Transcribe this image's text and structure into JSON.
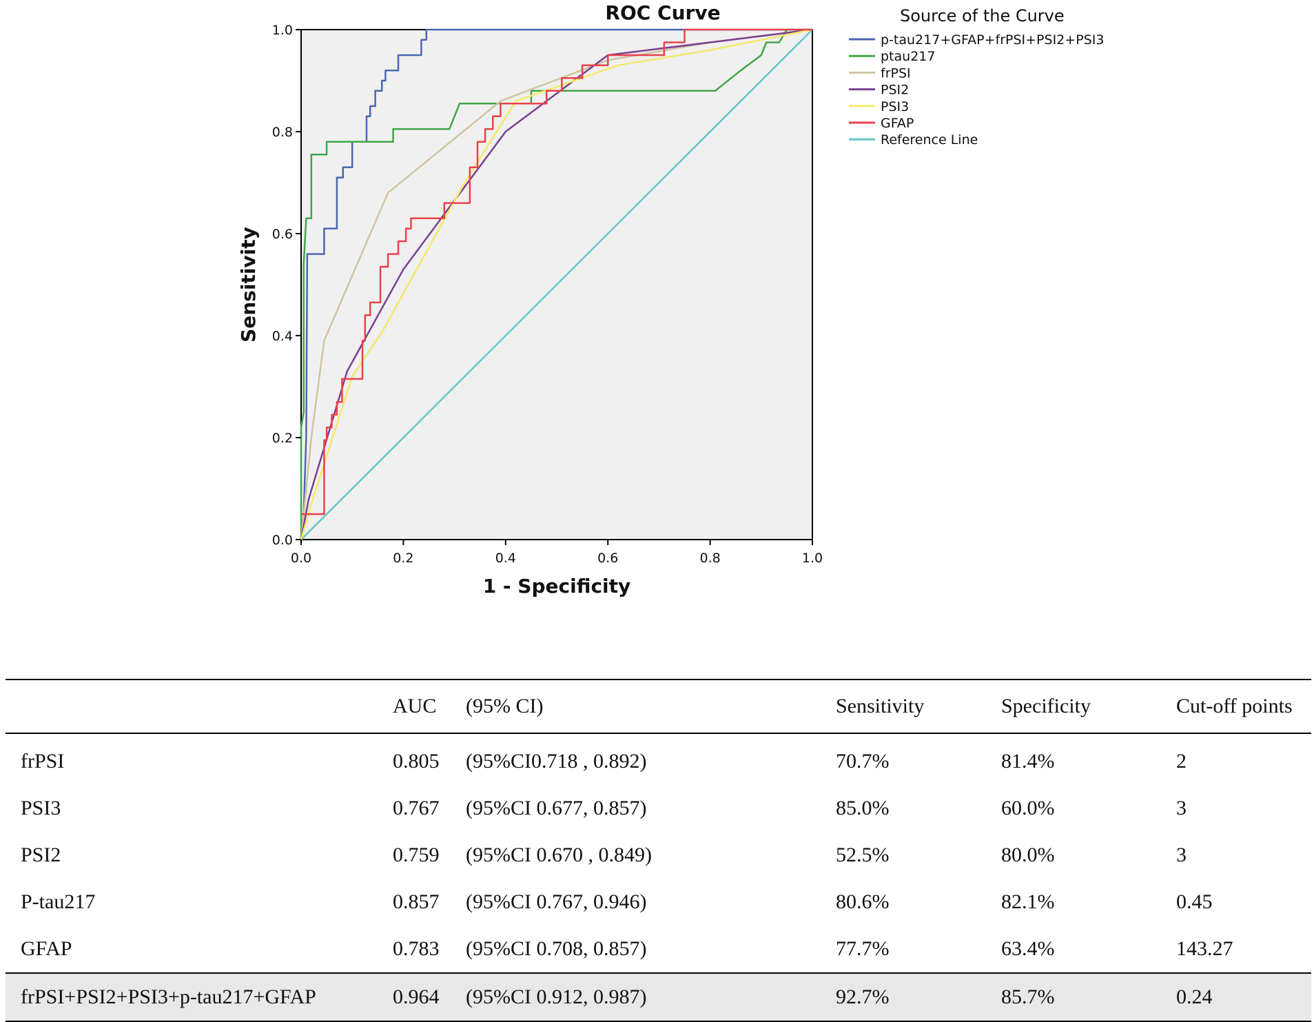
{
  "chart_data": {
    "type": "line",
    "title": "ROC Curve",
    "xlabel": "1 - Specificity",
    "ylabel": "Sensitivity",
    "xlim": [
      0,
      1
    ],
    "ylim": [
      0,
      1
    ],
    "xticks": [
      "0.0",
      "0.2",
      "0.4",
      "0.6",
      "0.8",
      "1.0"
    ],
    "yticks": [
      "0.0",
      "0.2",
      "0.4",
      "0.6",
      "0.8",
      "1.0"
    ],
    "legend_title": "Source of the Curve",
    "legend_position": "right",
    "series": [
      {
        "name": "p-tau217+GFAP+frPSI+PSI2+PSI3",
        "color": "#4a66b0",
        "points": [
          [
            0,
            0
          ],
          [
            0.005,
            0.05
          ],
          [
            0.01,
            0.2
          ],
          [
            0.012,
            0.56
          ],
          [
            0.045,
            0.56
          ],
          [
            0.045,
            0.61
          ],
          [
            0.07,
            0.61
          ],
          [
            0.07,
            0.71
          ],
          [
            0.082,
            0.71
          ],
          [
            0.082,
            0.73
          ],
          [
            0.1,
            0.73
          ],
          [
            0.1,
            0.78
          ],
          [
            0.128,
            0.78
          ],
          [
            0.128,
            0.83
          ],
          [
            0.135,
            0.83
          ],
          [
            0.135,
            0.85
          ],
          [
            0.145,
            0.85
          ],
          [
            0.145,
            0.88
          ],
          [
            0.158,
            0.88
          ],
          [
            0.158,
            0.9
          ],
          [
            0.165,
            0.9
          ],
          [
            0.165,
            0.92
          ],
          [
            0.19,
            0.92
          ],
          [
            0.19,
            0.95
          ],
          [
            0.235,
            0.95
          ],
          [
            0.235,
            0.98
          ],
          [
            0.245,
            0.98
          ],
          [
            0.245,
            1.0
          ],
          [
            1,
            1.0
          ]
        ]
      },
      {
        "name": "ptau217",
        "color": "#3fa648",
        "points": [
          [
            0,
            0
          ],
          [
            0,
            0.22
          ],
          [
            0.005,
            0.25
          ],
          [
            0.005,
            0.54
          ],
          [
            0.01,
            0.63
          ],
          [
            0.02,
            0.63
          ],
          [
            0.02,
            0.755
          ],
          [
            0.05,
            0.755
          ],
          [
            0.05,
            0.78
          ],
          [
            0.18,
            0.78
          ],
          [
            0.18,
            0.805
          ],
          [
            0.29,
            0.805
          ],
          [
            0.31,
            0.855
          ],
          [
            0.45,
            0.855
          ],
          [
            0.45,
            0.88
          ],
          [
            0.81,
            0.88
          ],
          [
            0.86,
            0.92
          ],
          [
            0.9,
            0.95
          ],
          [
            0.91,
            0.975
          ],
          [
            0.935,
            0.975
          ],
          [
            0.95,
            1.0
          ],
          [
            1,
            1.0
          ]
        ]
      },
      {
        "name": "frPSI",
        "color": "#cfc4a0",
        "points": [
          [
            0,
            0
          ],
          [
            0.02,
            0.2
          ],
          [
            0.045,
            0.39
          ],
          [
            0.17,
            0.68
          ],
          [
            0.39,
            0.86
          ],
          [
            0.6,
            0.94
          ],
          [
            0.8,
            0.975
          ],
          [
            1,
            1.0
          ]
        ]
      },
      {
        "name": "PSI2",
        "color": "#7b3f8f",
        "points": [
          [
            0,
            0
          ],
          [
            0.015,
            0.08
          ],
          [
            0.09,
            0.33
          ],
          [
            0.2,
            0.53
          ],
          [
            0.4,
            0.8
          ],
          [
            0.6,
            0.95
          ],
          [
            0.8,
            0.975
          ],
          [
            1,
            1.0
          ]
        ]
      },
      {
        "name": "PSI3",
        "color": "#f5e86a",
        "points": [
          [
            0,
            0
          ],
          [
            0.02,
            0.07
          ],
          [
            0.1,
            0.32
          ],
          [
            0.16,
            0.41
          ],
          [
            0.32,
            0.7
          ],
          [
            0.42,
            0.86
          ],
          [
            0.62,
            0.93
          ],
          [
            0.8,
            0.96
          ],
          [
            1,
            1.0
          ]
        ]
      },
      {
        "name": "GFAP",
        "color": "#e8424a",
        "points": [
          [
            0,
            0.05
          ],
          [
            0.045,
            0.05
          ],
          [
            0.045,
            0.195
          ],
          [
            0.05,
            0.195
          ],
          [
            0.05,
            0.22
          ],
          [
            0.06,
            0.22
          ],
          [
            0.06,
            0.245
          ],
          [
            0.07,
            0.245
          ],
          [
            0.07,
            0.27
          ],
          [
            0.08,
            0.27
          ],
          [
            0.08,
            0.315
          ],
          [
            0.12,
            0.315
          ],
          [
            0.12,
            0.39
          ],
          [
            0.125,
            0.39
          ],
          [
            0.125,
            0.44
          ],
          [
            0.135,
            0.44
          ],
          [
            0.135,
            0.465
          ],
          [
            0.155,
            0.465
          ],
          [
            0.155,
            0.535
          ],
          [
            0.17,
            0.535
          ],
          [
            0.17,
            0.56
          ],
          [
            0.19,
            0.56
          ],
          [
            0.19,
            0.585
          ],
          [
            0.205,
            0.585
          ],
          [
            0.205,
            0.61
          ],
          [
            0.215,
            0.61
          ],
          [
            0.215,
            0.63
          ],
          [
            0.28,
            0.63
          ],
          [
            0.28,
            0.66
          ],
          [
            0.33,
            0.66
          ],
          [
            0.33,
            0.73
          ],
          [
            0.345,
            0.73
          ],
          [
            0.345,
            0.78
          ],
          [
            0.36,
            0.78
          ],
          [
            0.36,
            0.805
          ],
          [
            0.375,
            0.805
          ],
          [
            0.375,
            0.83
          ],
          [
            0.39,
            0.83
          ],
          [
            0.39,
            0.855
          ],
          [
            0.48,
            0.855
          ],
          [
            0.48,
            0.88
          ],
          [
            0.51,
            0.88
          ],
          [
            0.51,
            0.905
          ],
          [
            0.55,
            0.905
          ],
          [
            0.55,
            0.93
          ],
          [
            0.6,
            0.93
          ],
          [
            0.6,
            0.95
          ],
          [
            0.71,
            0.95
          ],
          [
            0.71,
            0.975
          ],
          [
            0.75,
            0.975
          ],
          [
            0.75,
            1.0
          ],
          [
            1,
            1.0
          ]
        ]
      },
      {
        "name": "Reference Line",
        "color": "#66c6c6",
        "points": [
          [
            0,
            0
          ],
          [
            1,
            1
          ]
        ]
      }
    ]
  },
  "table": {
    "headers": {
      "name": "",
      "auc": "AUC",
      "ci": "(95% CI)",
      "sensitivity": "Sensitivity",
      "specificity": "Specificity",
      "cutoff": "Cut-off points"
    },
    "rows": [
      {
        "name": "frPSI",
        "auc": "0.805",
        "ci": "(95%CI0.718 , 0.892)",
        "sensitivity": "70.7%",
        "specificity": "81.4%",
        "cutoff": "2"
      },
      {
        "name": "PSI3",
        "auc": "0.767",
        "ci": "(95%CI 0.677, 0.857)",
        "sensitivity": "85.0%",
        "specificity": "60.0%",
        "cutoff": "3"
      },
      {
        "name": "PSI2",
        "auc": "0.759",
        "ci": "(95%CI 0.670 , 0.849)",
        "sensitivity": "52.5%",
        "specificity": "80.0%",
        "cutoff": "3"
      },
      {
        "name": "P-tau217",
        "auc": "0.857",
        "ci": "(95%CI 0.767, 0.946)",
        "sensitivity": "80.6%",
        "specificity": "82.1%",
        "cutoff": "0.45"
      },
      {
        "name": "GFAP",
        "auc": "0.783",
        "ci": "(95%CI 0.708, 0.857)",
        "sensitivity": "77.7%",
        "specificity": "63.4%",
        "cutoff": "143.27"
      },
      {
        "name": "frPSI+PSI2+PSI3+p-tau217+GFAP",
        "auc": "0.964",
        "ci": "(95%CI 0.912, 0.987)",
        "sensitivity": "92.7%",
        "specificity": "85.7%",
        "cutoff": "0.24"
      }
    ]
  }
}
